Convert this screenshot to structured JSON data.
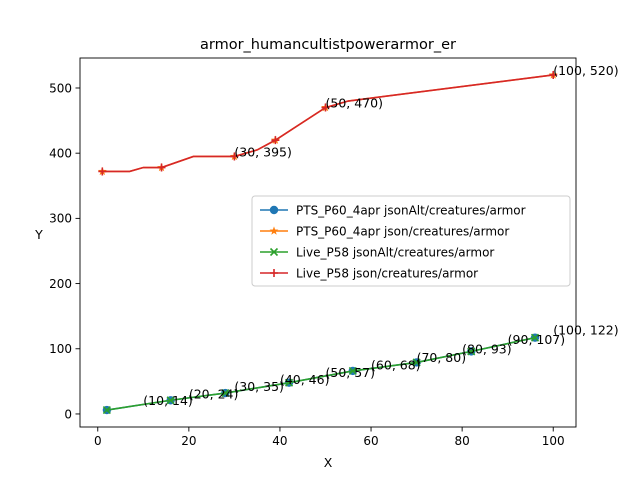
{
  "chart_data": {
    "type": "line",
    "title": "armor_humancultistpowerarmor_er",
    "xlabel": "X",
    "ylabel": "Y",
    "xlim": [
      -3.9,
      105
    ],
    "ylim": [
      -20,
      546
    ],
    "xticks": [
      0,
      20,
      40,
      60,
      80,
      100
    ],
    "yticks": [
      0,
      100,
      200,
      300,
      400,
      500
    ],
    "grid": false,
    "legend_position": "center-right",
    "series": [
      {
        "name": "PTS_P60_4apr jsonAlt/creatures/armor",
        "color": "#1f77b4",
        "marker": "circle",
        "x": [
          2,
          16,
          28,
          42,
          56,
          70,
          82,
          96
        ],
        "y": [
          6,
          21,
          32,
          48,
          66,
          79,
          96,
          117
        ]
      },
      {
        "name": "PTS_P60_4apr json/creatures/armor",
        "color": "#ff7f0e",
        "marker": "star",
        "x": [
          1,
          7,
          10,
          14,
          21,
          30,
          35,
          39,
          50,
          55,
          100
        ],
        "y": [
          372,
          372,
          378,
          378,
          395,
          395,
          405,
          420,
          470,
          480,
          520
        ]
      },
      {
        "name": "Live_P58 jsonAlt/creatures/armor",
        "color": "#2ca02c",
        "marker": "x",
        "x": [
          2,
          16,
          28,
          42,
          56,
          70,
          82,
          96
        ],
        "y": [
          6,
          21,
          32,
          48,
          66,
          79,
          96,
          117
        ]
      },
      {
        "name": "Live_P58 json/creatures/armor",
        "color": "#d62728",
        "marker": "plus",
        "x": [
          1,
          7,
          10,
          14,
          21,
          30,
          35,
          39,
          50,
          55,
          100
        ],
        "y": [
          372,
          372,
          378,
          378,
          395,
          395,
          405,
          420,
          470,
          480,
          520
        ]
      }
    ],
    "annotations": [
      {
        "text": "(30, 395)",
        "x": 30,
        "y": 395
      },
      {
        "text": "(50, 470)",
        "x": 50,
        "y": 470
      },
      {
        "text": "(100, 520)",
        "x": 100,
        "y": 520
      },
      {
        "text": "(10, 14)",
        "x": 10,
        "y": 14
      },
      {
        "text": "(20, 24)",
        "x": 20,
        "y": 24
      },
      {
        "text": "(30, 35)",
        "x": 30,
        "y": 35
      },
      {
        "text": "(40, 46)",
        "x": 40,
        "y": 46
      },
      {
        "text": "(50, 57)",
        "x": 50,
        "y": 57
      },
      {
        "text": "(60, 68)",
        "x": 60,
        "y": 68
      },
      {
        "text": "(70, 80)",
        "x": 70,
        "y": 80
      },
      {
        "text": "(80, 93)",
        "x": 80,
        "y": 93
      },
      {
        "text": "(90, 107)",
        "x": 90,
        "y": 107
      },
      {
        "text": "(100, 122)",
        "x": 100,
        "y": 122
      }
    ]
  }
}
